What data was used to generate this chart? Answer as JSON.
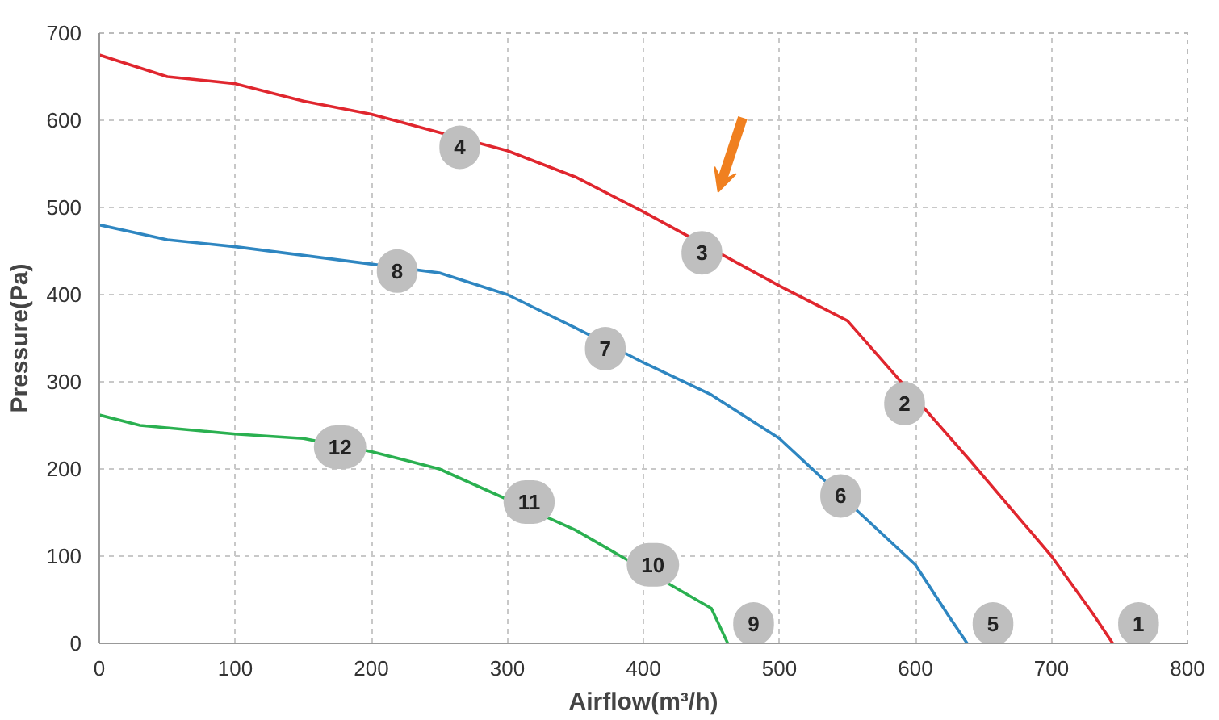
{
  "chart_data": {
    "type": "line",
    "xlabel": "Airflow(m³/h)",
    "ylabel": "Pressure(Pa)",
    "xlim": [
      0,
      800
    ],
    "ylim": [
      0,
      700
    ],
    "xticks": [
      0,
      100,
      200,
      300,
      400,
      500,
      600,
      700,
      800
    ],
    "yticks": [
      0,
      100,
      200,
      300,
      400,
      500,
      600,
      700
    ],
    "grid": true,
    "marker": "none",
    "line_style": "solid",
    "series": [
      {
        "color": "#e0262e",
        "x": [
          0,
          50,
          100,
          150,
          200,
          300,
          350,
          400,
          500,
          550,
          640,
          700,
          730,
          745
        ],
        "values": [
          675,
          650,
          642,
          622,
          607,
          565,
          535,
          495,
          410,
          370,
          210,
          100,
          35,
          0
        ]
      },
      {
        "color": "#2e86c1",
        "x": [
          0,
          50,
          100,
          150,
          250,
          300,
          350,
          400,
          450,
          500,
          600,
          625,
          638
        ],
        "values": [
          480,
          463,
          455,
          445,
          425,
          400,
          362,
          322,
          285,
          235,
          90,
          30,
          0
        ]
      },
      {
        "color": "#2ab050",
        "x": [
          0,
          30,
          100,
          150,
          200,
          250,
          350,
          450,
          462
        ],
        "values": [
          262,
          250,
          240,
          235,
          220,
          200,
          130,
          40,
          0
        ]
      }
    ],
    "annotations": [
      {
        "text": "1",
        "x": 745,
        "y": 0
      },
      {
        "text": "2",
        "x": 592,
        "y": 275
      },
      {
        "text": "3",
        "x": 443,
        "y": 448
      },
      {
        "text": "4",
        "x": 265,
        "y": 569
      },
      {
        "text": "5",
        "x": 638,
        "y": 0
      },
      {
        "text": "6",
        "x": 545,
        "y": 169
      },
      {
        "text": "7",
        "x": 372,
        "y": 338
      },
      {
        "text": "8",
        "x": 219,
        "y": 427
      },
      {
        "text": "9",
        "x": 462,
        "y": 0
      },
      {
        "text": "10",
        "x": 407,
        "y": 90
      },
      {
        "text": "11",
        "x": 316,
        "y": 162
      },
      {
        "text": "12",
        "x": 177,
        "y": 225
      }
    ]
  }
}
